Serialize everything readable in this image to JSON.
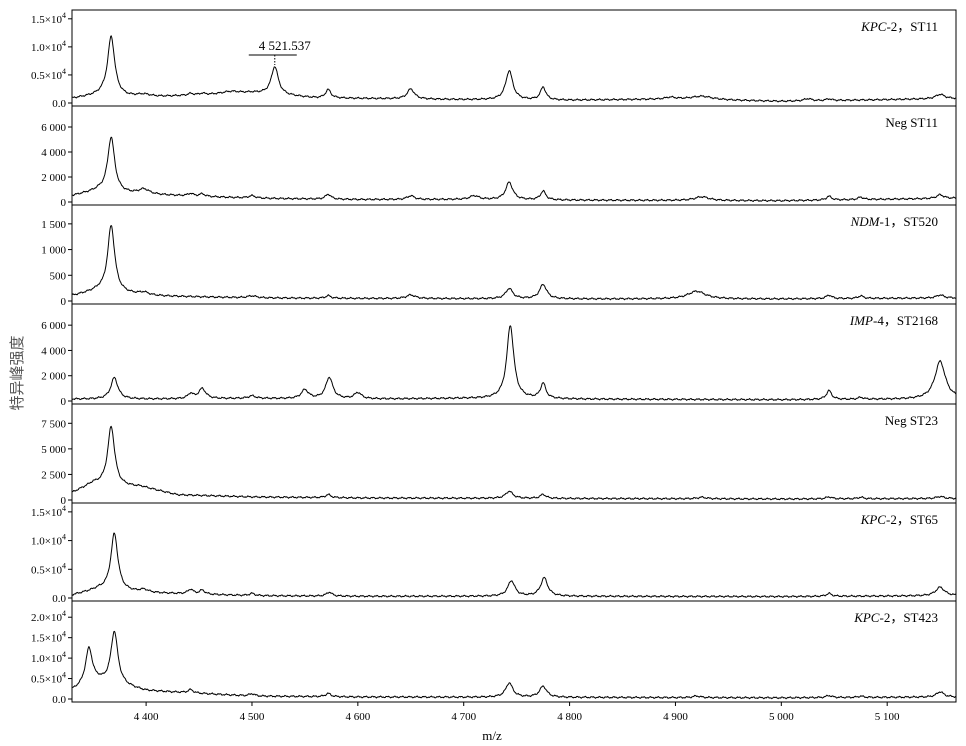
{
  "chart_data": {
    "type": "line",
    "title": "",
    "xlabel": "m/z",
    "ylabel": "特异峰强度",
    "xlim": [
      4330,
      5165
    ],
    "x_ticks": [
      4400,
      4500,
      4600,
      4700,
      4800,
      4900,
      5000,
      5100
    ],
    "x_tick_labels": [
      "4 400",
      "4 500",
      "4 600",
      "4 700",
      "4 800",
      "4 900",
      "5 000",
      "5 100"
    ],
    "grid": false,
    "legend": "none",
    "panels": [
      {
        "label_parts": [
          {
            "text": "KPC",
            "italic": true
          },
          {
            "text": "-2，ST11",
            "italic": false
          }
        ],
        "ylim": [
          0,
          15500
        ],
        "y_ticks": [
          0,
          5000,
          10000,
          15000
        ],
        "y_tick_labels": [
          {
            "mant": "0.0",
            "exp": ""
          },
          {
            "mant": "0.5×10",
            "exp": "4"
          },
          {
            "mant": "1.0×10",
            "exp": "4"
          },
          {
            "mant": "1.5×10",
            "exp": "4"
          }
        ],
        "baseline": [
          [
            4330,
            800
          ],
          [
            4360,
            1500
          ],
          [
            4380,
            1100
          ],
          [
            4400,
            1000
          ],
          [
            4500,
            1800
          ],
          [
            4560,
            900
          ],
          [
            4700,
            600
          ],
          [
            4800,
            500
          ],
          [
            4900,
            700
          ],
          [
            5000,
            300
          ],
          [
            5165,
            800
          ]
        ],
        "peaks": [
          [
            4367,
            10500,
            4
          ],
          [
            4398,
            500,
            8
          ],
          [
            4442,
            300,
            3
          ],
          [
            4453,
            250,
            3
          ],
          [
            4480,
            400,
            10
          ],
          [
            4521.537,
            5000,
            4
          ],
          [
            4572,
            1500,
            3
          ],
          [
            4650,
            1800,
            4
          ],
          [
            4743,
            5200,
            4
          ],
          [
            4775,
            2300,
            3
          ],
          [
            4895,
            300,
            5
          ],
          [
            4925,
            600,
            12
          ],
          [
            5025,
            400,
            4
          ],
          [
            5045,
            300,
            3
          ],
          [
            5150,
            800,
            5
          ]
        ],
        "annotation": {
          "text": "4 521.537",
          "x": 4521.537
        }
      },
      {
        "label_parts": [
          {
            "text": "Neg ST11",
            "italic": false
          }
        ],
        "ylim": [
          0,
          7200
        ],
        "y_ticks": [
          0,
          2000,
          4000,
          6000
        ],
        "y_tick_labels": [
          {
            "mant": "0",
            "exp": ""
          },
          {
            "mant": "2 000",
            "exp": ""
          },
          {
            "mant": "4 000",
            "exp": ""
          },
          {
            "mant": "6 000",
            "exp": ""
          }
        ],
        "baseline": [
          [
            4330,
            500
          ],
          [
            4355,
            900
          ],
          [
            4375,
            700
          ],
          [
            4400,
            600
          ],
          [
            4500,
            300
          ],
          [
            4600,
            200
          ],
          [
            4700,
            200
          ],
          [
            4800,
            150
          ],
          [
            5000,
            100
          ],
          [
            5165,
            300
          ]
        ],
        "peaks": [
          [
            4367,
            4400,
            4
          ],
          [
            4398,
            400,
            6
          ],
          [
            4442,
            200,
            3
          ],
          [
            4453,
            200,
            3
          ],
          [
            4500,
            200,
            4
          ],
          [
            4572,
            400,
            3
          ],
          [
            4650,
            300,
            4
          ],
          [
            4710,
            300,
            5
          ],
          [
            4743,
            1400,
            4
          ],
          [
            4775,
            700,
            3
          ],
          [
            4925,
            300,
            8
          ],
          [
            5045,
            300,
            3
          ],
          [
            5075,
            200,
            3
          ],
          [
            5150,
            300,
            4
          ]
        ]
      },
      {
        "label_parts": [
          {
            "text": "NDM",
            "italic": true
          },
          {
            "text": "-1，ST520",
            "italic": false
          }
        ],
        "ylim": [
          0,
          1750
        ],
        "y_ticks": [
          0,
          500,
          1000,
          1500
        ],
        "y_tick_labels": [
          {
            "mant": "0",
            "exp": ""
          },
          {
            "mant": "500",
            "exp": ""
          },
          {
            "mant": "1 000",
            "exp": ""
          },
          {
            "mant": "1 500",
            "exp": ""
          }
        ],
        "baseline": [
          [
            4330,
            100
          ],
          [
            4355,
            200
          ],
          [
            4375,
            150
          ],
          [
            4400,
            100
          ],
          [
            4500,
            60
          ],
          [
            4600,
            50
          ],
          [
            4800,
            40
          ],
          [
            5000,
            40
          ],
          [
            5165,
            60
          ]
        ],
        "peaks": [
          [
            4367,
            1300,
            4
          ],
          [
            4398,
            60,
            6
          ],
          [
            4500,
            40,
            5
          ],
          [
            4572,
            50,
            3
          ],
          [
            4650,
            70,
            5
          ],
          [
            4743,
            200,
            4
          ],
          [
            4775,
            280,
            4
          ],
          [
            4920,
            150,
            10
          ],
          [
            5045,
            70,
            3
          ],
          [
            5075,
            50,
            3
          ],
          [
            5150,
            60,
            4
          ]
        ]
      },
      {
        "label_parts": [
          {
            "text": "IMP",
            "italic": true
          },
          {
            "text": "-4，ST2168",
            "italic": false
          }
        ],
        "ylim": [
          0,
          7200
        ],
        "y_ticks": [
          0,
          2000,
          4000,
          6000
        ],
        "y_tick_labels": [
          {
            "mant": "0",
            "exp": ""
          },
          {
            "mant": "2 000",
            "exp": ""
          },
          {
            "mant": "4 000",
            "exp": ""
          },
          {
            "mant": "6 000",
            "exp": ""
          }
        ],
        "baseline": [
          [
            4330,
            150
          ],
          [
            4400,
            150
          ],
          [
            4500,
            200
          ],
          [
            4600,
            150
          ],
          [
            4700,
            200
          ],
          [
            4800,
            150
          ],
          [
            5000,
            100
          ],
          [
            5165,
            150
          ]
        ],
        "peaks": [
          [
            4370,
            1700,
            4
          ],
          [
            4442,
            400,
            3
          ],
          [
            4453,
            800,
            4
          ],
          [
            4500,
            200,
            4
          ],
          [
            4550,
            700,
            4
          ],
          [
            4573,
            1700,
            4
          ],
          [
            4600,
            500,
            4
          ],
          [
            4744,
            5800,
            4
          ],
          [
            4775,
            1200,
            3
          ],
          [
            5045,
            700,
            3
          ],
          [
            5075,
            150,
            3
          ],
          [
            5150,
            3000,
            6
          ]
        ]
      },
      {
        "label_parts": [
          {
            "text": "Neg ST23",
            "italic": false
          }
        ],
        "ylim": [
          0,
          8800
        ],
        "y_ticks": [
          0,
          2500,
          5000,
          7500
        ],
        "y_tick_labels": [
          {
            "mant": "0",
            "exp": ""
          },
          {
            "mant": "2 500",
            "exp": ""
          },
          {
            "mant": "5 000",
            "exp": ""
          },
          {
            "mant": "7 500",
            "exp": ""
          }
        ],
        "baseline": [
          [
            4330,
            700
          ],
          [
            4350,
            1600
          ],
          [
            4375,
            1300
          ],
          [
            4395,
            1300
          ],
          [
            4430,
            500
          ],
          [
            4500,
            300
          ],
          [
            4600,
            200
          ],
          [
            4800,
            150
          ],
          [
            5000,
            100
          ],
          [
            5165,
            150
          ]
        ],
        "peaks": [
          [
            4367,
            5800,
            4
          ],
          [
            4572,
            300,
            3
          ],
          [
            4743,
            700,
            4
          ],
          [
            4775,
            400,
            3
          ],
          [
            4925,
            150,
            5
          ],
          [
            5045,
            200,
            3
          ],
          [
            5075,
            150,
            3
          ],
          [
            5150,
            200,
            4
          ]
        ]
      },
      {
        "label_parts": [
          {
            "text": "KPC",
            "italic": true
          },
          {
            "text": "-2，ST65",
            "italic": false
          }
        ],
        "ylim": [
          0,
          15500
        ],
        "y_ticks": [
          0,
          5000,
          10000,
          15000
        ],
        "y_tick_labels": [
          {
            "mant": "0.0",
            "exp": ""
          },
          {
            "mant": "0.5×10",
            "exp": "4"
          },
          {
            "mant": "1.0×10",
            "exp": "4"
          },
          {
            "mant": "1.5×10",
            "exp": "4"
          }
        ],
        "baseline": [
          [
            4330,
            500
          ],
          [
            4355,
            1500
          ],
          [
            4380,
            1100
          ],
          [
            4400,
            900
          ],
          [
            4500,
            400
          ],
          [
            4600,
            300
          ],
          [
            4700,
            300
          ],
          [
            4800,
            300
          ],
          [
            5000,
            250
          ],
          [
            5165,
            400
          ]
        ],
        "peaks": [
          [
            4370,
            10000,
            4
          ],
          [
            4398,
            500,
            5
          ],
          [
            4442,
            800,
            3
          ],
          [
            4453,
            700,
            3
          ],
          [
            4500,
            400,
            3
          ],
          [
            4573,
            700,
            3
          ],
          [
            4745,
            2700,
            4
          ],
          [
            4776,
            3200,
            4
          ],
          [
            5045,
            500,
            3
          ],
          [
            5150,
            1500,
            5
          ]
        ]
      },
      {
        "label_parts": [
          {
            "text": "KPC",
            "italic": true
          },
          {
            "text": "-2，ST423",
            "italic": false
          }
        ],
        "ylim": [
          0,
          22500
        ],
        "y_ticks": [
          0,
          5000,
          10000,
          15000,
          20000
        ],
        "y_tick_labels": [
          {
            "mant": "0.0",
            "exp": ""
          },
          {
            "mant": "0.5×10",
            "exp": "4"
          },
          {
            "mant": "1.0×10",
            "exp": "4"
          },
          {
            "mant": "1.5×10",
            "exp": "4"
          },
          {
            "mant": "2.0×10",
            "exp": "4"
          }
        ],
        "baseline": [
          [
            4330,
            2000
          ],
          [
            4355,
            4000
          ],
          [
            4380,
            3000
          ],
          [
            4400,
            2000
          ],
          [
            4500,
            700
          ],
          [
            4600,
            500
          ],
          [
            4800,
            400
          ],
          [
            5000,
            300
          ],
          [
            5165,
            500
          ]
        ],
        "peaks": [
          [
            4346,
            9000,
            4
          ],
          [
            4370,
            13000,
            4
          ],
          [
            4442,
            800,
            3
          ],
          [
            4500,
            600,
            3
          ],
          [
            4572,
            800,
            3
          ],
          [
            4743,
            3500,
            4
          ],
          [
            4775,
            2700,
            4
          ],
          [
            4920,
            400,
            4
          ],
          [
            5045,
            500,
            3
          ],
          [
            5075,
            300,
            3
          ],
          [
            5150,
            1300,
            4
          ]
        ]
      }
    ]
  }
}
